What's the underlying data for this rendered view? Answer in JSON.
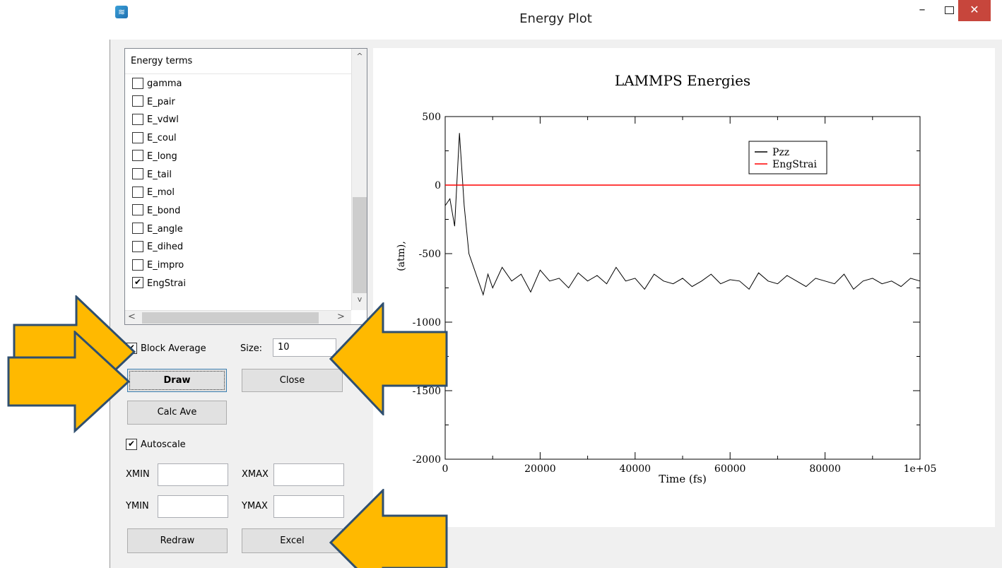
{
  "window": {
    "title": "Energy Plot",
    "minimize_glyph": "–",
    "close_glyph": "✕",
    "app_icon": "app-icon"
  },
  "energy_list": {
    "header": "Energy terms",
    "items": [
      {
        "label": "gamma",
        "checked": false
      },
      {
        "label": "E_pair",
        "checked": false
      },
      {
        "label": "E_vdwl",
        "checked": false
      },
      {
        "label": "E_coul",
        "checked": false
      },
      {
        "label": "E_long",
        "checked": false
      },
      {
        "label": "E_tail",
        "checked": false
      },
      {
        "label": "E_mol",
        "checked": false
      },
      {
        "label": "E_bond",
        "checked": false
      },
      {
        "label": "E_angle",
        "checked": false
      },
      {
        "label": "E_dihed",
        "checked": false
      },
      {
        "label": "E_impro",
        "checked": false
      },
      {
        "label": "EngStrai",
        "checked": true
      }
    ],
    "scroll_up": "^",
    "scroll_down": "v",
    "scroll_left": "<",
    "scroll_right": ">"
  },
  "controls": {
    "block_average_label": "Block Average",
    "block_average_checked": true,
    "size_label": "Size:",
    "size_value": "10",
    "draw_label": "Draw",
    "close_label": "Close",
    "calc_ave_label": "Calc Ave",
    "autoscale_label": "Autoscale",
    "autoscale_checked": true,
    "xmin_label": "XMIN",
    "xmax_label": "XMAX",
    "ymin_label": "YMIN",
    "ymax_label": "YMAX",
    "xmin_value": "",
    "xmax_value": "",
    "ymin_value": "",
    "ymax_value": "",
    "redraw_label": "Redraw",
    "excel_label": "Excel",
    "check_glyph": "✔"
  },
  "colors": {
    "arrow_fill": "#ffb900",
    "arrow_stroke": "#2f4f6f",
    "close_red": "#c7463c",
    "pzz": "#000000",
    "engstrai": "#ff0000"
  },
  "chart_data": {
    "type": "line",
    "title": "LAMMPS Energies",
    "xlabel": "Time (fs)",
    "ylabel": "(atm),",
    "xlim": [
      0,
      100000
    ],
    "ylim": [
      -2000,
      500
    ],
    "x_ticks": [
      "0",
      "20000",
      "40000",
      "60000",
      "80000",
      "1e+05"
    ],
    "y_ticks": [
      "500",
      "0",
      "-500",
      "-1000",
      "-1500",
      "-2000"
    ],
    "legend_position": "top-right",
    "series": [
      {
        "name": "Pzz",
        "x": [
          0,
          1000,
          2000,
          3000,
          4000,
          5000,
          6000,
          7000,
          8000,
          9000,
          10000,
          12000,
          14000,
          16000,
          18000,
          20000,
          22000,
          24000,
          26000,
          28000,
          30000,
          32000,
          34000,
          36000,
          38000,
          40000,
          42000,
          44000,
          46000,
          48000,
          50000,
          52000,
          54000,
          56000,
          58000,
          60000,
          62000,
          64000,
          66000,
          68000,
          70000,
          72000,
          74000,
          76000,
          78000,
          80000,
          82000,
          84000,
          86000,
          88000,
          90000,
          92000,
          94000,
          96000,
          98000,
          100000
        ],
        "y": [
          -150,
          -100,
          -300,
          380,
          -150,
          -500,
          -600,
          -700,
          -800,
          -650,
          -750,
          -600,
          -700,
          -650,
          -780,
          -620,
          -700,
          -680,
          -750,
          -640,
          -700,
          -660,
          -720,
          -600,
          -700,
          -680,
          -760,
          -650,
          -700,
          -720,
          -680,
          -740,
          -700,
          -650,
          -720,
          -690,
          -700,
          -760,
          -640,
          -700,
          -720,
          -660,
          -700,
          -740,
          -680,
          -700,
          -720,
          -650,
          -760,
          -700,
          -680,
          -720,
          -700,
          -740,
          -680,
          -700
        ]
      },
      {
        "name": "EngStrai",
        "x": [
          0,
          100000
        ],
        "y": [
          0,
          0
        ]
      }
    ]
  }
}
